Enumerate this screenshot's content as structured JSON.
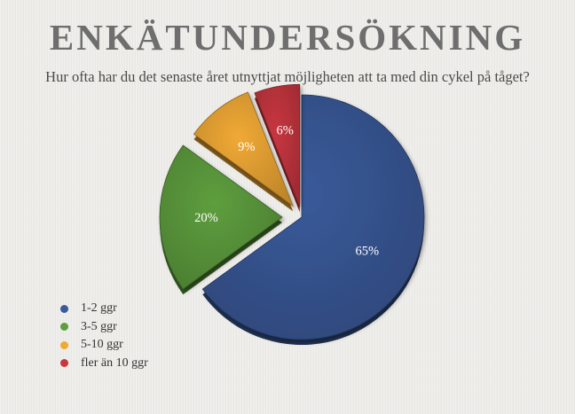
{
  "title": "ENKÄTUNDERSÖKNING",
  "subtitle": "Hur ofta har du det senaste året utnyttjat möjligheten att ta med din cykel på tåget?",
  "chart_data": {
    "type": "pie",
    "categories": [
      "1-2 ggr",
      "3-5 ggr",
      "5-10 ggr",
      "fler än 10 ggr"
    ],
    "values": [
      65,
      20,
      9,
      6
    ],
    "value_labels": [
      "65%",
      "20%",
      "9%",
      "6%"
    ],
    "colors": [
      "#3a5a9a",
      "#5e9e3e",
      "#f0a935",
      "#c83640"
    ],
    "legend_position": "bottom-left",
    "exploded": true
  }
}
